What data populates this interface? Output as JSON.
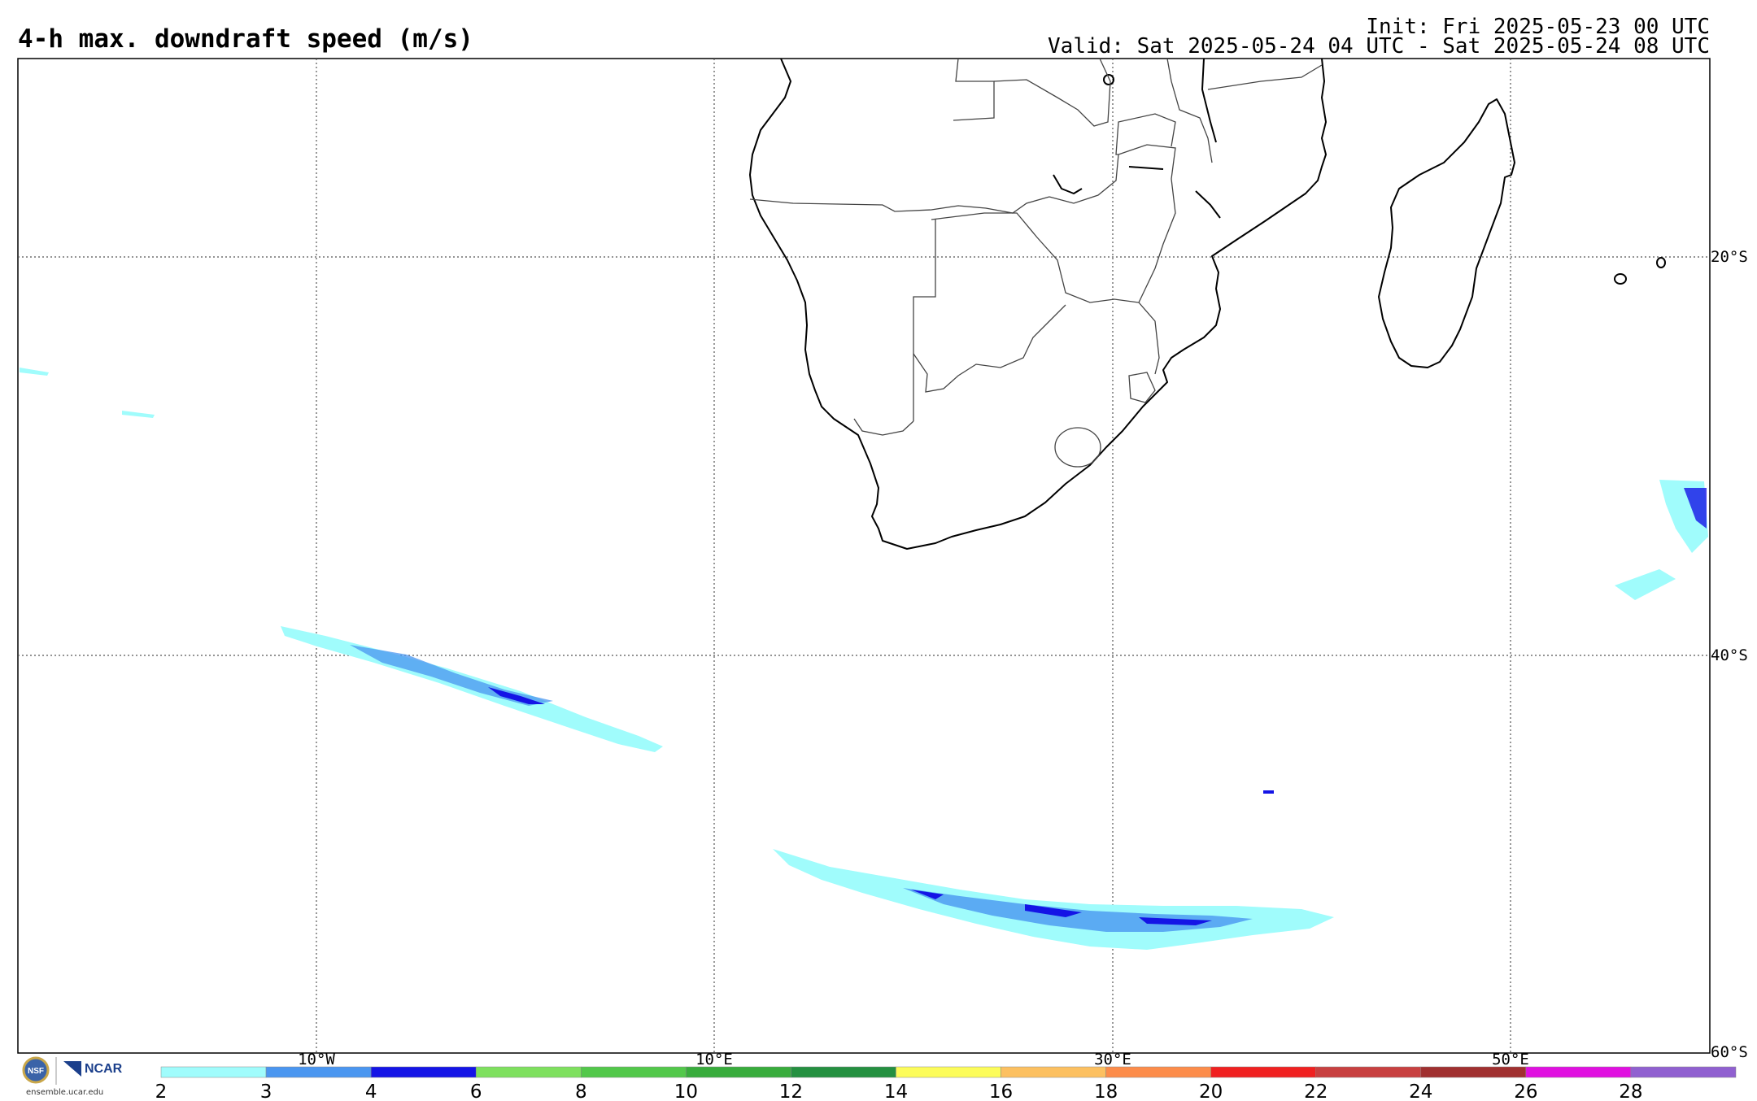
{
  "header": {
    "title": "4-h max. downdraft speed (m/s)",
    "init": "Init: Fri 2025-05-23 00 UTC",
    "valid": "Valid: Sat 2025-05-24 04 UTC - Sat 2025-05-24 08 UTC"
  },
  "map": {
    "lon_labels": [
      "10°W",
      "10°E",
      "30°E",
      "50°E"
    ],
    "lat_labels": [
      "20°S",
      "40°S",
      "60°S"
    ],
    "grid": "dotted"
  },
  "colorbar": {
    "ticks": [
      "2",
      "3",
      "4",
      "6",
      "8",
      "10",
      "12",
      "14",
      "16",
      "18",
      "20",
      "22",
      "24",
      "26",
      "28"
    ],
    "colors": [
      "#a0fcfc",
      "#4a96f0",
      "#1414e6",
      "#7ee05e",
      "#52c84a",
      "#38ac3c",
      "#249040",
      "#fcfc5a",
      "#fcc060",
      "#fc8c4a",
      "#f02020",
      "#c84040",
      "#a03030",
      "#e010e0",
      "#9060d0"
    ]
  },
  "logos": {
    "nsf": "NSF",
    "ncar": "NCAR",
    "url": "ensemble.ucar.edu"
  }
}
